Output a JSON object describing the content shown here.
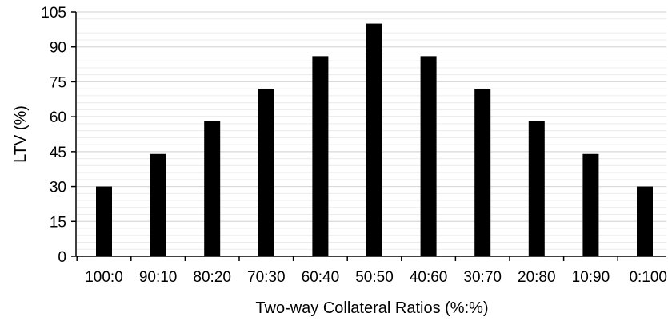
{
  "chart_data": {
    "type": "bar",
    "title": "",
    "xlabel": "Two-way Collateral Ratios (%:%)",
    "ylabel": "LTV (%)",
    "categories": [
      "100:0",
      "90:10",
      "80:20",
      "70:30",
      "60:40",
      "50:50",
      "40:60",
      "30:70",
      "20:80",
      "10:90",
      "0:100"
    ],
    "values": [
      30,
      44,
      58,
      72,
      86,
      100,
      86,
      72,
      58,
      44,
      30
    ],
    "ylim": [
      0,
      105
    ],
    "yticks": [
      "0",
      "15",
      "30",
      "45",
      "60",
      "75",
      "90",
      "105"
    ],
    "grid": true,
    "minor_grid": true,
    "bar_color": "#000000",
    "grid_color": "#d9d9d9",
    "minor_grid_color": "#ececec"
  }
}
